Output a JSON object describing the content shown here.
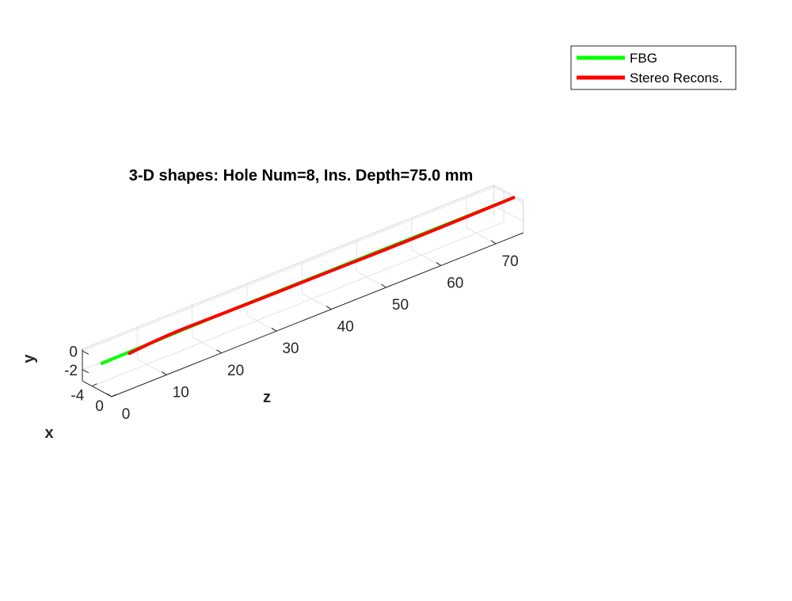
{
  "chart_data": {
    "type": "line",
    "projection": "3d",
    "title": "3-D shapes: Hole Num=8, Ins. Depth=75.0 mm",
    "xlabel": "x",
    "ylabel": "y",
    "zlabel": "z",
    "x_ticks": [
      "0",
      "-4"
    ],
    "y_ticks": [
      "0",
      "-2"
    ],
    "z_ticks": [
      "0",
      "10",
      "20",
      "30",
      "40",
      "50",
      "60",
      "70"
    ],
    "xlim": [
      -6,
      0
    ],
    "ylim": [
      -3.2,
      0.2
    ],
    "zlim": [
      0,
      75
    ],
    "grid": true,
    "legend_position": "top-right",
    "series": [
      {
        "name": "FBG",
        "color": "#00ff00",
        "points": [
          {
            "x": -2.0,
            "y": -0.2,
            "z": 0
          },
          {
            "x": -2.0,
            "y": -0.1,
            "z": 10
          },
          {
            "x": -2.0,
            "y": 0.0,
            "z": 20
          },
          {
            "x": -2.0,
            "y": 0.0,
            "z": 30
          },
          {
            "x": -2.0,
            "y": 0.0,
            "z": 40
          },
          {
            "x": -2.0,
            "y": 0.0,
            "z": 50
          },
          {
            "x": -2.0,
            "y": 0.0,
            "z": 60
          },
          {
            "x": -2.0,
            "y": 0.0,
            "z": 75
          }
        ]
      },
      {
        "name": "Stereo Recons.",
        "color": "#ff0000",
        "points": [
          {
            "x": -2.0,
            "y": -0.3,
            "z": 5
          },
          {
            "x": -2.0,
            "y": 0.05,
            "z": 12
          },
          {
            "x": -2.0,
            "y": 0.0,
            "z": 20
          },
          {
            "x": -2.0,
            "y": -0.05,
            "z": 30
          },
          {
            "x": -2.0,
            "y": -0.05,
            "z": 40
          },
          {
            "x": -2.0,
            "y": -0.1,
            "z": 50
          },
          {
            "x": -2.0,
            "y": -0.1,
            "z": 60
          },
          {
            "x": -2.0,
            "y": 0.0,
            "z": 75
          }
        ]
      }
    ]
  }
}
